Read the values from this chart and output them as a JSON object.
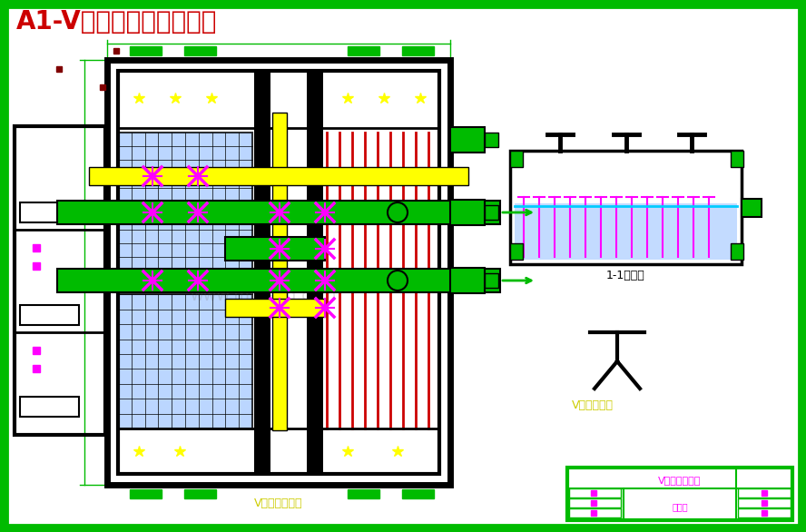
{
  "title": "A1-V型滤池工艺图（一）",
  "title_color": "#CC0000",
  "bg_color": "#FFFFFF",
  "border_color": "#00BB00",
  "fig_width": 8.88,
  "fig_height": 5.86,
  "bottom_label": "V型滤池平面图",
  "bottom_label_color": "#CCCC00",
  "section_label": "1-1剖面图",
  "section_label_color": "#000000",
  "v_nozzle_label": "V型滤头大样",
  "v_nozzle_color": "#CCCC00",
  "title_box_text1": "V型滤池工艺图",
  "title_box_text2": "（一）",
  "title_box_color": "#00BB00"
}
